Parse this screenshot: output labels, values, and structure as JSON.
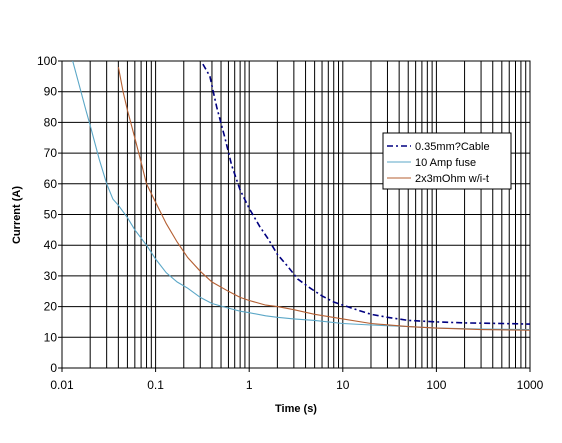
{
  "chart_data": {
    "type": "line",
    "title": "",
    "xlabel": "Time (s)",
    "ylabel": "Current (A)",
    "x_scale": "log",
    "xlim": [
      0.01,
      1000
    ],
    "ylim": [
      0,
      100
    ],
    "x_ticks": [
      "0.01",
      "0.1",
      "1",
      "10",
      "100",
      "1000"
    ],
    "y_ticks": [
      "0",
      "10",
      "20",
      "30",
      "40",
      "50",
      "60",
      "70",
      "80",
      "90",
      "100"
    ],
    "grid": true,
    "legend_position": "right",
    "series": [
      {
        "name": "0.35mm?Cable",
        "color": "#000080",
        "dash": "dashdot",
        "points": [
          [
            0.32,
            99
          ],
          [
            0.38,
            95
          ],
          [
            0.45,
            85
          ],
          [
            0.55,
            75
          ],
          [
            0.65,
            66
          ],
          [
            0.8,
            58
          ],
          [
            1.0,
            52
          ],
          [
            1.3,
            46
          ],
          [
            1.6,
            42
          ],
          [
            2.0,
            37
          ],
          [
            2.6,
            33
          ],
          [
            3.3,
            29
          ],
          [
            4.5,
            26
          ],
          [
            6,
            23.5
          ],
          [
            8,
            21.5
          ],
          [
            10,
            20.5
          ],
          [
            14,
            19
          ],
          [
            20,
            17.5
          ],
          [
            30,
            16.5
          ],
          [
            50,
            15.5
          ],
          [
            100,
            15
          ],
          [
            200,
            14.7
          ],
          [
            500,
            14.5
          ],
          [
            1000,
            14.3
          ]
        ]
      },
      {
        "name": "10 Amp fuse",
        "color": "#5ba7c7",
        "dash": "solid",
        "points": [
          [
            0.013,
            100
          ],
          [
            0.015,
            93
          ],
          [
            0.018,
            84
          ],
          [
            0.02,
            79
          ],
          [
            0.025,
            68
          ],
          [
            0.03,
            60
          ],
          [
            0.035,
            55
          ],
          [
            0.04,
            53
          ],
          [
            0.05,
            49
          ],
          [
            0.06,
            45
          ],
          [
            0.08,
            40
          ],
          [
            0.1,
            35.5
          ],
          [
            0.13,
            31
          ],
          [
            0.17,
            28
          ],
          [
            0.22,
            26
          ],
          [
            0.3,
            23
          ],
          [
            0.4,
            21
          ],
          [
            0.6,
            19.5
          ],
          [
            0.8,
            18.5
          ],
          [
            1,
            18
          ],
          [
            1.5,
            17
          ],
          [
            2,
            16.5
          ],
          [
            3,
            16
          ],
          [
            5,
            15.5
          ],
          [
            10,
            14.5
          ],
          [
            20,
            14
          ],
          [
            50,
            13.5
          ],
          [
            100,
            13
          ],
          [
            300,
            12.7
          ],
          [
            1000,
            12.5
          ]
        ]
      },
      {
        "name": "2x3mOhm w/i-t",
        "color": "#b45f32",
        "dash": "solid",
        "points": [
          [
            0.04,
            98
          ],
          [
            0.045,
            90
          ],
          [
            0.05,
            84
          ],
          [
            0.06,
            75
          ],
          [
            0.07,
            67
          ],
          [
            0.08,
            60
          ],
          [
            0.1,
            54
          ],
          [
            0.13,
            47
          ],
          [
            0.17,
            41
          ],
          [
            0.22,
            36
          ],
          [
            0.3,
            31.5
          ],
          [
            0.4,
            28
          ],
          [
            0.6,
            25
          ],
          [
            0.8,
            23
          ],
          [
            1,
            22
          ],
          [
            1.5,
            20.5
          ],
          [
            2,
            20
          ],
          [
            3,
            19
          ],
          [
            5,
            17.5
          ],
          [
            10,
            16
          ],
          [
            20,
            14.5
          ],
          [
            50,
            13.5
          ],
          [
            100,
            13
          ],
          [
            300,
            12.5
          ],
          [
            1000,
            12.3
          ]
        ]
      }
    ]
  }
}
